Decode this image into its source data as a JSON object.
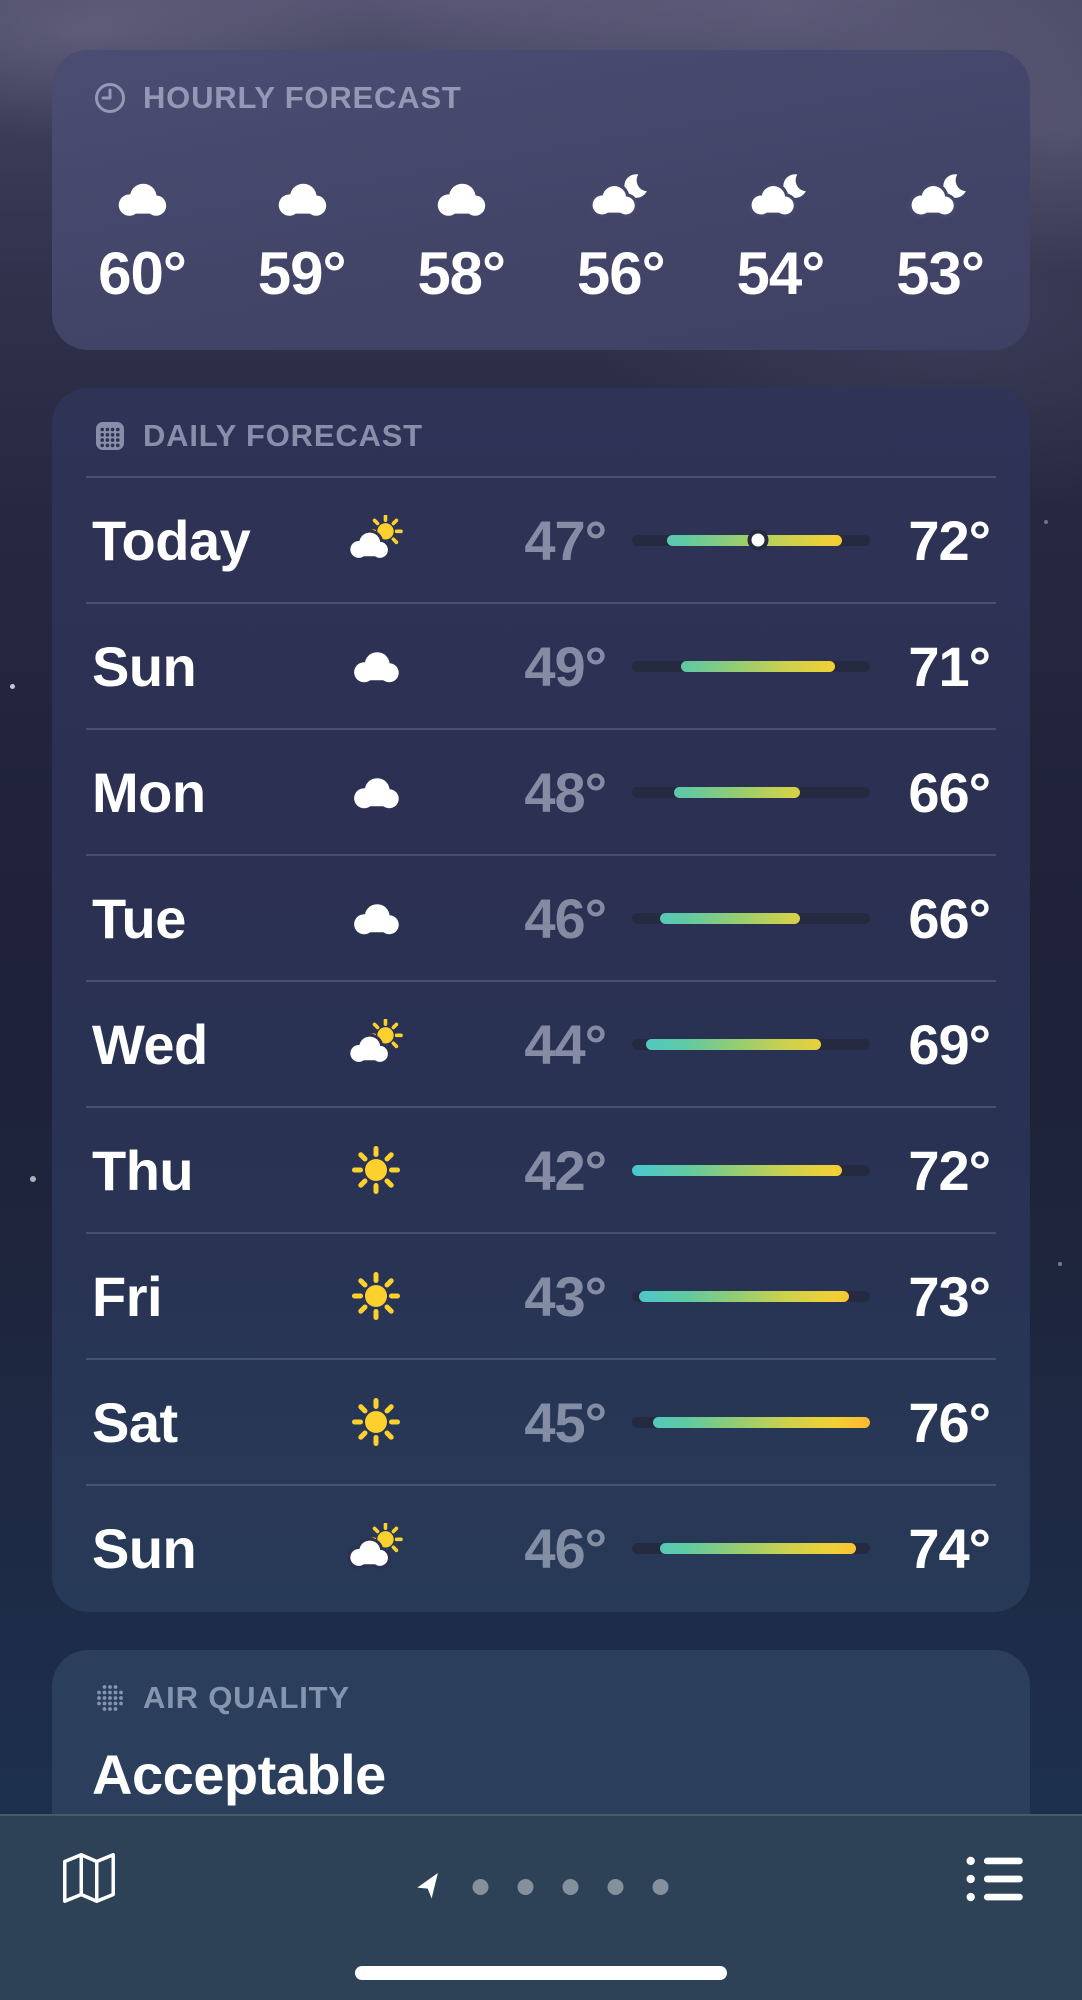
{
  "hourly_forecast": {
    "header_label": "HOURLY FORECAST",
    "items": [
      {
        "icon": "cloud",
        "temp": "60°"
      },
      {
        "icon": "cloud",
        "temp": "59°"
      },
      {
        "icon": "cloud",
        "temp": "58°"
      },
      {
        "icon": "cloud-moon",
        "temp": "56°"
      },
      {
        "icon": "cloud-moon",
        "temp": "54°"
      },
      {
        "icon": "cloud-moon",
        "temp": "53°"
      }
    ]
  },
  "daily_forecast": {
    "header_label": "DAILY FORECAST",
    "scale": {
      "min": 42,
      "max": 76
    },
    "rows": [
      {
        "day": "Today",
        "icon": "cloud-sun",
        "low": 47,
        "high": 72,
        "low_label": "47°",
        "high_label": "72°",
        "current": 60
      },
      {
        "day": "Sun",
        "icon": "cloud",
        "low": 49,
        "high": 71,
        "low_label": "49°",
        "high_label": "71°",
        "current": null
      },
      {
        "day": "Mon",
        "icon": "cloud",
        "low": 48,
        "high": 66,
        "low_label": "48°",
        "high_label": "66°",
        "current": null
      },
      {
        "day": "Tue",
        "icon": "cloud",
        "low": 46,
        "high": 66,
        "low_label": "46°",
        "high_label": "66°",
        "current": null
      },
      {
        "day": "Wed",
        "icon": "cloud-sun",
        "low": 44,
        "high": 69,
        "low_label": "44°",
        "high_label": "69°",
        "current": null
      },
      {
        "day": "Thu",
        "icon": "sun",
        "low": 42,
        "high": 72,
        "low_label": "42°",
        "high_label": "72°",
        "current": null
      },
      {
        "day": "Fri",
        "icon": "sun",
        "low": 43,
        "high": 73,
        "low_label": "43°",
        "high_label": "73°",
        "current": null
      },
      {
        "day": "Sat",
        "icon": "sun",
        "low": 45,
        "high": 76,
        "low_label": "45°",
        "high_label": "76°",
        "current": null
      },
      {
        "day": "Sun",
        "icon": "cloud-sun",
        "low": 46,
        "high": 74,
        "low_label": "46°",
        "high_label": "74°",
        "current": null
      }
    ]
  },
  "air_quality": {
    "header_label": "AIR QUALITY",
    "value": "Acceptable"
  },
  "toolbar": {
    "page_dots": 5
  },
  "colors": {
    "bar_track": "#252a41",
    "bar_dot_ring": "#252a41",
    "sun_yellow": "#fcd12d",
    "bar_gradient": [
      [
        0,
        "#4bc8ce"
      ],
      [
        22,
        "#5fc9a3"
      ],
      [
        45,
        "#96cd70"
      ],
      [
        65,
        "#cdd14d"
      ],
      [
        85,
        "#f2cf35"
      ],
      [
        100,
        "#fdb92e"
      ]
    ]
  }
}
